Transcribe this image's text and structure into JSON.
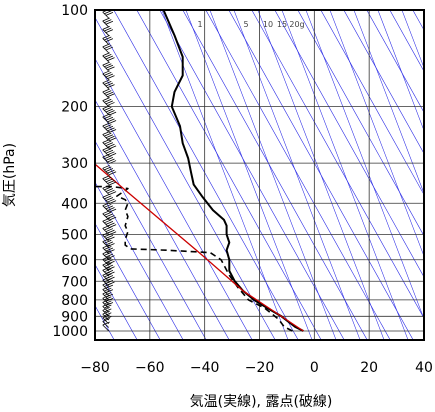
{
  "chart_data": {
    "type": "line",
    "xlabel": "気温(実線), 露点(破線)",
    "ylabel": "気圧(hPa)",
    "xlim": [
      -80,
      40
    ],
    "ylim": [
      1050,
      100
    ],
    "y_scale": "log",
    "x_ticks": [
      -80,
      -60,
      -40,
      -20,
      0,
      20,
      40
    ],
    "x_tick_labels": [
      "−80",
      "−60",
      "−40",
      "−20",
      "0",
      "20",
      "40"
    ],
    "y_ticks": [
      100,
      200,
      300,
      400,
      500,
      600,
      700,
      800,
      900,
      1000
    ],
    "y_tick_labels": [
      "100",
      "200",
      "300",
      "400",
      "500",
      "600",
      "700",
      "800",
      "900",
      "1000"
    ],
    "grid": true,
    "mixing_ratio_labels": [
      "1",
      "5",
      "10",
      "15",
      "20g"
    ],
    "colors": {
      "temperature": "#000000",
      "dewpoint": "#000000",
      "parcel": "#cc0000",
      "dry_adiabats": "#2a2ae6",
      "mixing_ratio": "#2a2ae6",
      "grid": "#333333",
      "wind_barbs": "#000000"
    },
    "series": [
      {
        "style": "solid",
        "points": [
          [
            -4,
            1000
          ],
          [
            -7,
            970
          ],
          [
            -12,
            900
          ],
          [
            -17,
            850
          ],
          [
            -22,
            800
          ],
          [
            -26,
            750
          ],
          [
            -29,
            700
          ],
          [
            -31,
            650
          ],
          [
            -31,
            600
          ],
          [
            -32,
            560
          ],
          [
            -31,
            530
          ],
          [
            -32,
            500
          ],
          [
            -32,
            470
          ],
          [
            -33,
            450
          ],
          [
            -37,
            420
          ],
          [
            -41,
            380
          ],
          [
            -44,
            350
          ],
          [
            -45,
            320
          ],
          [
            -46,
            290
          ],
          [
            -48,
            260
          ],
          [
            -49,
            230
          ],
          [
            -52,
            200
          ],
          [
            -51,
            180
          ],
          [
            -48,
            160
          ],
          [
            -48,
            140
          ],
          [
            -51,
            120
          ],
          [
            -55,
            100
          ]
        ]
      },
      {
        "style": "dashed",
        "points": [
          [
            -8,
            1000
          ],
          [
            -11,
            970
          ],
          [
            -13,
            920
          ],
          [
            -18,
            850
          ],
          [
            -24,
            800
          ],
          [
            -28,
            730
          ],
          [
            -31,
            670
          ],
          [
            -34,
            600
          ],
          [
            -38,
            570
          ],
          [
            -54,
            560
          ],
          [
            -67,
            555
          ],
          [
            -69,
            540
          ],
          [
            -69,
            520
          ],
          [
            -68,
            490
          ],
          [
            -69,
            470
          ],
          [
            -68,
            440
          ],
          [
            -69,
            420
          ],
          [
            -68,
            400
          ],
          [
            -69,
            390
          ],
          [
            -72,
            380
          ],
          [
            -68,
            360
          ],
          [
            -74,
            355
          ],
          [
            -81,
            355
          ]
        ]
      },
      {
        "style": "solid",
        "points": [
          [
            -4,
            1000
          ],
          [
            -26,
            750
          ],
          [
            -43,
            560
          ],
          [
            -68,
            370
          ],
          [
            -82,
            292
          ]
        ]
      }
    ],
    "barbs_x": -75,
    "barbs": [
      {
        "p": 1000,
        "speed": 10,
        "dir": 250
      },
      {
        "p": 975,
        "speed": 10,
        "dir": 250
      },
      {
        "p": 950,
        "speed": 15,
        "dir": 260
      },
      {
        "p": 925,
        "speed": 15,
        "dir": 260
      },
      {
        "p": 900,
        "speed": 20,
        "dir": 270
      },
      {
        "p": 875,
        "speed": 20,
        "dir": 270
      },
      {
        "p": 850,
        "speed": 25,
        "dir": 270
      },
      {
        "p": 825,
        "speed": 25,
        "dir": 270
      },
      {
        "p": 800,
        "speed": 30,
        "dir": 270
      },
      {
        "p": 775,
        "speed": 30,
        "dir": 270
      },
      {
        "p": 750,
        "speed": 30,
        "dir": 270
      },
      {
        "p": 725,
        "speed": 35,
        "dir": 270
      },
      {
        "p": 700,
        "speed": 35,
        "dir": 270
      },
      {
        "p": 675,
        "speed": 35,
        "dir": 270
      },
      {
        "p": 650,
        "speed": 35,
        "dir": 270
      },
      {
        "p": 625,
        "speed": 40,
        "dir": 270
      },
      {
        "p": 600,
        "speed": 40,
        "dir": 270
      },
      {
        "p": 575,
        "speed": 40,
        "dir": 270
      },
      {
        "p": 550,
        "speed": 40,
        "dir": 270
      },
      {
        "p": 525,
        "speed": 40,
        "dir": 270
      },
      {
        "p": 500,
        "speed": 45,
        "dir": 270
      },
      {
        "p": 475,
        "speed": 45,
        "dir": 270
      },
      {
        "p": 450,
        "speed": 45,
        "dir": 270
      },
      {
        "p": 425,
        "speed": 45,
        "dir": 270
      },
      {
        "p": 400,
        "speed": 50,
        "dir": 270
      },
      {
        "p": 375,
        "speed": 50,
        "dir": 270
      },
      {
        "p": 350,
        "speed": 50,
        "dir": 270
      },
      {
        "p": 325,
        "speed": 50,
        "dir": 270
      },
      {
        "p": 300,
        "speed": 50,
        "dir": 270
      },
      {
        "p": 285,
        "speed": 50,
        "dir": 270
      },
      {
        "p": 270,
        "speed": 50,
        "dir": 270
      },
      {
        "p": 255,
        "speed": 45,
        "dir": 270
      },
      {
        "p": 240,
        "speed": 45,
        "dir": 270
      },
      {
        "p": 225,
        "speed": 45,
        "dir": 270
      },
      {
        "p": 212,
        "speed": 45,
        "dir": 270
      },
      {
        "p": 200,
        "speed": 40,
        "dir": 270
      },
      {
        "p": 188,
        "speed": 40,
        "dir": 270
      },
      {
        "p": 176,
        "speed": 40,
        "dir": 270
      },
      {
        "p": 165,
        "speed": 35,
        "dir": 270
      },
      {
        "p": 155,
        "speed": 35,
        "dir": 270
      },
      {
        "p": 145,
        "speed": 35,
        "dir": 270
      },
      {
        "p": 136,
        "speed": 30,
        "dir": 270
      },
      {
        "p": 128,
        "speed": 30,
        "dir": 270
      },
      {
        "p": 120,
        "speed": 30,
        "dir": 270
      },
      {
        "p": 113,
        "speed": 25,
        "dir": 270
      },
      {
        "p": 106,
        "speed": 25,
        "dir": 270
      },
      {
        "p": 100,
        "speed": 25,
        "dir": 270
      }
    ]
  }
}
